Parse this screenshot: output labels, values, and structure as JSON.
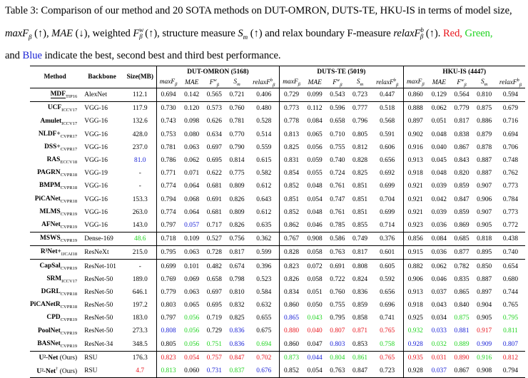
{
  "caption": {
    "label": "Table 3:",
    "text1": "Comparison of our method and 20 SOTA methods on DUT-OMRON, DUTS-TE, HKU-IS in terms of model size,",
    "m1": "maxF",
    "text2": "(↑),",
    "m2": "MAE",
    "text3": "(↓), weighted",
    "m3": "F",
    "text4": "(↑), structure measure",
    "m4": "S",
    "text5": "(↑) and relax boundary F-measure",
    "m5": "relaxF",
    "text6": "(↑).",
    "red": "Red,",
    "green": "Green,",
    "text7": "and",
    "blue": "Blue",
    "text8": "indicate the best, second best and third best performance."
  },
  "table": {
    "headers": {
      "method": "Method",
      "backbone": "Backbone",
      "size": "Size(MB)"
    },
    "datasets": [
      "DUT-OMRON (5168)",
      "DUTS-TE (5019)",
      "HKU-IS (4447)"
    ],
    "metric_labels": [
      "maxF",
      "MAE",
      "F",
      "S",
      "relaxF"
    ],
    "rows": [
      {
        "m": "MDF",
        "sub": "TIP16",
        "bb": "AlexNet",
        "size": "112.1",
        "v": [
          "0.694",
          "0.142",
          "0.565",
          "0.721",
          "0.406",
          "0.729",
          "0.099",
          "0.543",
          "0.723",
          "0.447",
          "0.860",
          "0.129",
          "0.564",
          "0.810",
          "0.594"
        ]
      },
      {
        "m": "UCF",
        "sub": "ICCV17",
        "bb": "VGG-16",
        "size": "117.9",
        "v": [
          "0.730",
          "0.120",
          "0.573",
          "0.760",
          "0.480",
          "0.773",
          "0.112",
          "0.596",
          "0.777",
          "0.518",
          "0.888",
          "0.062",
          "0.779",
          "0.875",
          "0.679"
        ]
      },
      {
        "m": "Amulet",
        "sub": "ICCV17",
        "bb": "VGG-16",
        "size": "132.6",
        "v": [
          "0.743",
          "0.098",
          "0.626",
          "0.781",
          "0.528",
          "0.778",
          "0.084",
          "0.658",
          "0.796",
          "0.568",
          "0.897",
          "0.051",
          "0.817",
          "0.886",
          "0.716"
        ]
      },
      {
        "m": "NLDF+",
        "sub": "CVPR17",
        "bb": "VGG-16",
        "size": "428.0",
        "v": [
          "0.753",
          "0.080",
          "0.634",
          "0.770",
          "0.514",
          "0.813",
          "0.065",
          "0.710",
          "0.805",
          "0.591",
          "0.902",
          "0.048",
          "0.838",
          "0.879",
          "0.694"
        ]
      },
      {
        "m": "DSS+",
        "sub": "CVPR17",
        "bb": "VGG-16",
        "size": "237.0",
        "v": [
          "0.781",
          "0.063",
          "0.697",
          "0.790",
          "0.559",
          "0.825",
          "0.056",
          "0.755",
          "0.812",
          "0.606",
          "0.916",
          "0.040",
          "0.867",
          "0.878",
          "0.706"
        ]
      },
      {
        "m": "RAS",
        "sub": "ECCV18",
        "bb": "VGG-16",
        "size": "81.0",
        "v": [
          "0.786",
          "0.062",
          "0.695",
          "0.814",
          "0.615",
          "0.831",
          "0.059",
          "0.740",
          "0.828",
          "0.656",
          "0.913",
          "0.045",
          "0.843",
          "0.887",
          "0.748"
        ]
      },
      {
        "m": "PAGRN",
        "sub": "CVPR18",
        "bb": "VGG-19",
        "size": "-",
        "v": [
          "0.771",
          "0.071",
          "0.622",
          "0.775",
          "0.582",
          "0.854",
          "0.055",
          "0.724",
          "0.825",
          "0.692",
          "0.918",
          "0.048",
          "0.820",
          "0.887",
          "0.762"
        ]
      },
      {
        "m": "BMPM",
        "sub": "CVPR18",
        "bb": "VGG-16",
        "size": "-",
        "v": [
          "0.774",
          "0.064",
          "0.681",
          "0.809",
          "0.612",
          "0.852",
          "0.048",
          "0.761",
          "0.851",
          "0.699",
          "0.921",
          "0.039",
          "0.859",
          "0.907",
          "0.773"
        ]
      },
      {
        "m": "PiCANet",
        "sub": "CVPR18",
        "bb": "VGG-16",
        "size": "153.3",
        "v": [
          "0.794",
          "0.068",
          "0.691",
          "0.826",
          "0.643",
          "0.851",
          "0.054",
          "0.747",
          "0.851",
          "0.704",
          "0.921",
          "0.042",
          "0.847",
          "0.906",
          "0.784"
        ]
      },
      {
        "m": "MLMS",
        "sub": "CVPR19",
        "bb": "VGG-16",
        "size": "263.0",
        "v": [
          "0.774",
          "0.064",
          "0.681",
          "0.809",
          "0.612",
          "0.852",
          "0.048",
          "0.761",
          "0.851",
          "0.699",
          "0.921",
          "0.039",
          "0.859",
          "0.907",
          "0.773"
        ]
      },
      {
        "m": "AFNet",
        "sub": "CVPR19",
        "bb": "VGG-16",
        "size": "143.0",
        "v": [
          "0.797",
          "0.057",
          "0.717",
          "0.826",
          "0.635",
          "0.862",
          "0.046",
          "0.785",
          "0.855",
          "0.714",
          "0.923",
          "0.036",
          "0.869",
          "0.905",
          "0.772"
        ]
      },
      {
        "m": "MSWS",
        "sub": "CVPR19",
        "bb": "Dense-169",
        "size": "48.6",
        "v": [
          "0.718",
          "0.109",
          "0.527",
          "0.756",
          "0.362",
          "0.767",
          "0.908",
          "0.586",
          "0.749",
          "0.376",
          "0.856",
          "0.084",
          "0.685",
          "0.818",
          "0.438"
        ]
      },
      {
        "m": "R³Net+",
        "sub": "IJCAI18",
        "bb": "ResNeXt",
        "size": "215.0",
        "v": [
          "0.795",
          "0.063",
          "0.728",
          "0.817",
          "0.599",
          "0.828",
          "0.058",
          "0.763",
          "0.817",
          "0.601",
          "0.915",
          "0.036",
          "0.877",
          "0.895",
          "0.740"
        ]
      },
      {
        "m": "CapSal",
        "sub": "CVPR19",
        "bb": "ResNet-101",
        "size": "-",
        "v": [
          "0.699",
          "0.101",
          "0.482",
          "0.674",
          "0.396",
          "0.823",
          "0.072",
          "0.691",
          "0.808",
          "0.605",
          "0.882",
          "0.062",
          "0.782",
          "0.850",
          "0.654"
        ]
      },
      {
        "m": "SRM",
        "sub": "ICCV17",
        "bb": "ResNet-50",
        "size": "189.0",
        "v": [
          "0.769",
          "0.069",
          "0.658",
          "0.798",
          "0.523",
          "0.826",
          "0.058",
          "0.722",
          "0.824",
          "0.592",
          "0.906",
          "0.046",
          "0.835",
          "0.887",
          "0.680"
        ]
      },
      {
        "m": "DGRL",
        "sub": "CVPR18",
        "bb": "ResNet-50",
        "size": "646.1",
        "v": [
          "0.779",
          "0.063",
          "0.697",
          "0.810",
          "0.584",
          "0.834",
          "0.051",
          "0.760",
          "0.836",
          "0.656",
          "0.913",
          "0.037",
          "0.865",
          "0.897",
          "0.744"
        ]
      },
      {
        "m": "PiCANetR",
        "sub": "CVPR18",
        "bb": "ResNet-50",
        "size": "197.2",
        "v": [
          "0.803",
          "0.065",
          "0.695",
          "0.832",
          "0.632",
          "0.860",
          "0.050",
          "0.755",
          "0.859",
          "0.696",
          "0.918",
          "0.043",
          "0.840",
          "0.904",
          "0.765"
        ]
      },
      {
        "m": "CPD",
        "sub": "CVPR19",
        "bb": "ResNet-50",
        "size": "183.0",
        "v": [
          "0.797",
          "0.056",
          "0.719",
          "0.825",
          "0.655",
          "0.865",
          "0.043",
          "0.795",
          "0.858",
          "0.741",
          "0.925",
          "0.034",
          "0.875",
          "0.905",
          "0.795"
        ]
      },
      {
        "m": "PoolNet",
        "sub": "CVPR19",
        "bb": "ResNet-50",
        "size": "273.3",
        "v": [
          "0.808",
          "0.056",
          "0.729",
          "0.836",
          "0.675",
          "0.880",
          "0.040",
          "0.807",
          "0.871",
          "0.765",
          "0.932",
          "0.033",
          "0.881",
          "0.917",
          "0.811"
        ]
      },
      {
        "m": "BASNet",
        "sub": "CVPR19",
        "bb": "ResNet-34",
        "size": "348.5",
        "v": [
          "0.805",
          "0.056",
          "0.751",
          "0.836",
          "0.694",
          "0.860",
          "0.047",
          "0.803",
          "0.853",
          "0.758",
          "0.928",
          "0.032",
          "0.889",
          "0.909",
          "0.807"
        ]
      },
      {
        "m": "U²-Net",
        "sub": "",
        "sup": "",
        "note": "(Ours)",
        "bb": "RSU",
        "size": "176.3",
        "v": [
          "0.823",
          "0.054",
          "0.757",
          "0.847",
          "0.702",
          "0.873",
          "0.044",
          "0.804",
          "0.861",
          "0.765",
          "0.935",
          "0.031",
          "0.890",
          "0.916",
          "0.812"
        ]
      },
      {
        "m": "U²-Net",
        "sup": "†",
        "note": "(Ours)",
        "bb": "RSU",
        "size": "4.7",
        "v": [
          "0.813",
          "0.060",
          "0.731",
          "0.837",
          "0.676",
          "0.852",
          "0.054",
          "0.763",
          "0.847",
          "0.723",
          "0.928",
          "0.037",
          "0.867",
          "0.908",
          "0.794"
        ]
      }
    ]
  },
  "colors": {
    "red": "#e8141c",
    "green": "#1ed31e",
    "blue": "#1a22d6"
  }
}
